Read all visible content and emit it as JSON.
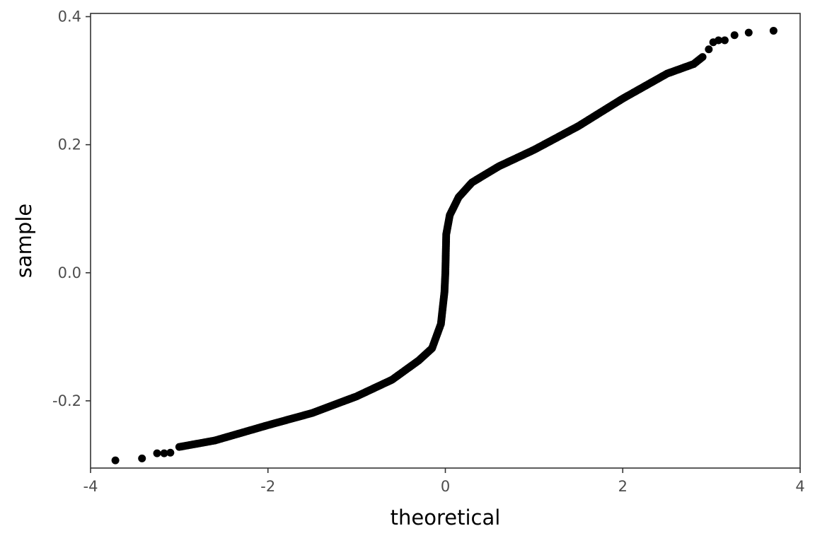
{
  "chart_data": {
    "type": "scatter",
    "title": "",
    "xlabel": "theoretical",
    "ylabel": "sample",
    "xlim": [
      -4.0,
      4.0
    ],
    "ylim": [
      -0.305,
      0.405
    ],
    "x_ticks": [
      -4,
      -2,
      0,
      2,
      4
    ],
    "x_tick_labels": [
      "-4",
      "-2",
      "0",
      "2",
      "4"
    ],
    "y_ticks": [
      -0.2,
      0.0,
      0.2,
      0.4
    ],
    "y_tick_labels": [
      "-0.2",
      "0.0",
      "0.2",
      "0.4"
    ],
    "grid": false,
    "legend": "none",
    "point_color": "#000000",
    "panel_border_color": "#333333",
    "curve_points": [
      {
        "x": -3.0,
        "y": -0.272
      },
      {
        "x": -2.6,
        "y": -0.262
      },
      {
        "x": -2.0,
        "y": -0.238
      },
      {
        "x": -1.5,
        "y": -0.219
      },
      {
        "x": -1.0,
        "y": -0.193
      },
      {
        "x": -0.6,
        "y": -0.167
      },
      {
        "x": -0.3,
        "y": -0.137
      },
      {
        "x": -0.15,
        "y": -0.118
      },
      {
        "x": -0.05,
        "y": -0.08
      },
      {
        "x": -0.01,
        "y": -0.03
      },
      {
        "x": 0.0,
        "y": 0.0
      },
      {
        "x": 0.01,
        "y": 0.06
      },
      {
        "x": 0.05,
        "y": 0.09
      },
      {
        "x": 0.15,
        "y": 0.118
      },
      {
        "x": 0.3,
        "y": 0.141
      },
      {
        "x": 0.6,
        "y": 0.166
      },
      {
        "x": 1.0,
        "y": 0.192
      },
      {
        "x": 1.5,
        "y": 0.229
      },
      {
        "x": 2.0,
        "y": 0.272
      },
      {
        "x": 2.5,
        "y": 0.311
      },
      {
        "x": 2.8,
        "y": 0.326
      },
      {
        "x": 2.9,
        "y": 0.337
      }
    ],
    "tail_points": [
      {
        "x": -3.72,
        "y": -0.293
      },
      {
        "x": -3.42,
        "y": -0.29
      },
      {
        "x": -3.25,
        "y": -0.282
      },
      {
        "x": -3.17,
        "y": -0.282
      },
      {
        "x": -3.1,
        "y": -0.281
      },
      {
        "x": 2.97,
        "y": 0.349
      },
      {
        "x": 3.02,
        "y": 0.36
      },
      {
        "x": 3.08,
        "y": 0.363
      },
      {
        "x": 3.15,
        "y": 0.363
      },
      {
        "x": 3.26,
        "y": 0.371
      },
      {
        "x": 3.42,
        "y": 0.375
      },
      {
        "x": 3.7,
        "y": 0.378
      }
    ]
  }
}
